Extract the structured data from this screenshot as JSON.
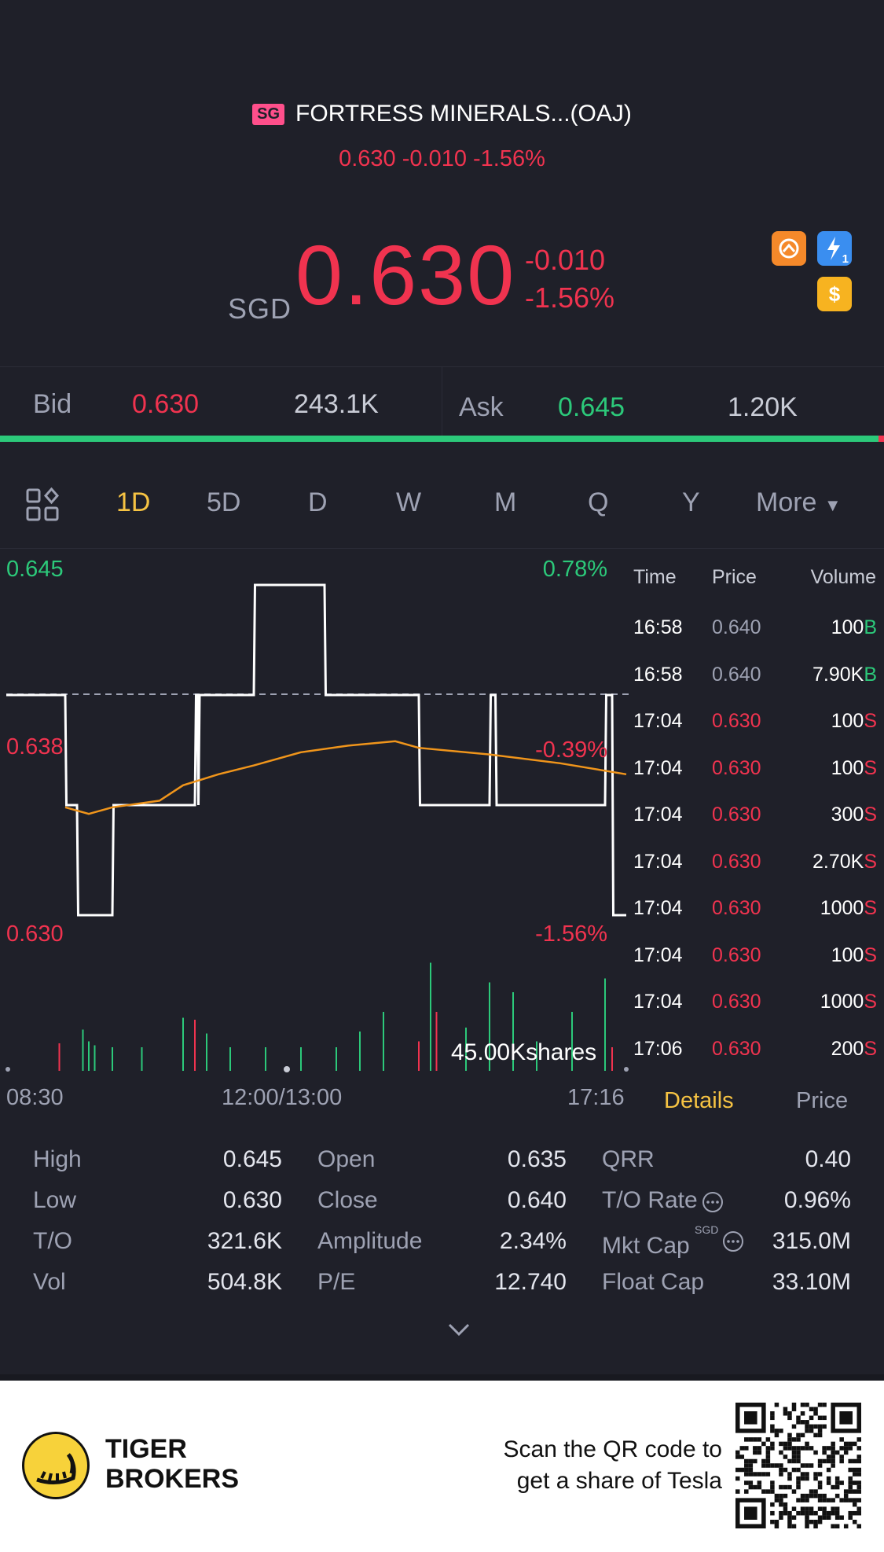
{
  "header": {
    "market_badge": "SG",
    "title": "FORTRESS MINERALS...(OAJ)",
    "subtitle": "0.630 -0.010 -1.56%"
  },
  "quote": {
    "currency": "SGD",
    "price": "0.630",
    "change": "-0.010",
    "change_pct": "-1.56%"
  },
  "icons": [
    "shared-icon",
    "lightning-icon",
    "dollar-icon"
  ],
  "icon_labels": {
    "lightning_sub": "1",
    "dollar": "$"
  },
  "bid_ask": {
    "bid_label": "Bid",
    "bid_price": "0.630",
    "bid_size": "243.1K",
    "ask_label": "Ask",
    "ask_price": "0.645",
    "ask_size": "1.20K"
  },
  "tabs": [
    "1D",
    "5D",
    "D",
    "W",
    "M",
    "Q",
    "Y",
    "More"
  ],
  "active_tab": "1D",
  "chart": {
    "y_top": "0.645",
    "y_mid": "0.638",
    "y_bot": "0.630",
    "pct_top": "0.78%",
    "pct_mid": "-0.39%",
    "pct_bot": "-1.56%",
    "volume_label": "45.00Kshares",
    "x_start": "08:30",
    "x_mid": "12:00/13:00",
    "x_end": "17:16"
  },
  "chart_data": {
    "type": "line",
    "xlabel": "",
    "ylabel": "",
    "ylim": [
      0.63,
      0.645
    ],
    "series": [
      {
        "x": [
          "08:30",
          "09:20",
          "09:21",
          "09:30",
          "09:31",
          "10:00",
          "10:01",
          "11:10",
          "11:11",
          "11:12",
          "11:13",
          "11:14",
          "12:00",
          "12:01",
          "13:00",
          "13:01",
          "14:20",
          "14:21",
          "15:20",
          "15:21",
          "15:25",
          "15:26",
          "16:58",
          "16:59",
          "17:04",
          "17:05",
          "17:16"
        ],
        "values": [
          0.64,
          0.64,
          0.635,
          0.635,
          0.63,
          0.63,
          0.635,
          0.635,
          0.64,
          0.64,
          0.635,
          0.64,
          0.64,
          0.645,
          0.645,
          0.64,
          0.64,
          0.635,
          0.635,
          0.64,
          0.64,
          0.635,
          0.635,
          0.64,
          0.64,
          0.63,
          0.63
        ]
      },
      {
        "x": [
          "09:20",
          "09:40",
          "10:00",
          "10:40",
          "11:00",
          "11:30",
          "12:00",
          "12:40",
          "13:20",
          "14:00",
          "14:20",
          "15:20",
          "16:20",
          "17:16"
        ],
        "values": [
          0.6349,
          0.6346,
          0.6349,
          0.6352,
          0.6359,
          0.6364,
          0.6368,
          0.6374,
          0.6377,
          0.6379,
          0.6376,
          0.6373,
          0.6369,
          0.6364
        ]
      }
    ],
    "volume_bars": [
      {
        "x": "09:15",
        "v": 14,
        "c": "#f0334f"
      },
      {
        "x": "09:35",
        "v": 21,
        "c": "#2cc97a"
      },
      {
        "x": "09:40",
        "v": 15,
        "c": "#2cc97a"
      },
      {
        "x": "09:45",
        "v": 13,
        "c": "#2cc97a"
      },
      {
        "x": "10:00",
        "v": 12,
        "c": "#2cc97a"
      },
      {
        "x": "10:25",
        "v": 12,
        "c": "#2cc97a"
      },
      {
        "x": "11:00",
        "v": 27,
        "c": "#2cc97a"
      },
      {
        "x": "11:10",
        "v": 26,
        "c": "#f0334f"
      },
      {
        "x": "11:20",
        "v": 19,
        "c": "#2cc97a"
      },
      {
        "x": "11:40",
        "v": 12,
        "c": "#2cc97a"
      },
      {
        "x": "12:10",
        "v": 12,
        "c": "#2cc97a"
      },
      {
        "x": "12:40",
        "v": 12,
        "c": "#2cc97a"
      },
      {
        "x": "13:10",
        "v": 12,
        "c": "#2cc97a"
      },
      {
        "x": "13:30",
        "v": 20,
        "c": "#2cc97a"
      },
      {
        "x": "13:50",
        "v": 30,
        "c": "#2cc97a"
      },
      {
        "x": "14:20",
        "v": 15,
        "c": "#f0334f"
      },
      {
        "x": "14:30",
        "v": 55,
        "c": "#2cc97a"
      },
      {
        "x": "14:35",
        "v": 30,
        "c": "#f0334f"
      },
      {
        "x": "15:00",
        "v": 22,
        "c": "#2cc97a"
      },
      {
        "x": "15:20",
        "v": 45,
        "c": "#2cc97a"
      },
      {
        "x": "15:40",
        "v": 40,
        "c": "#2cc97a"
      },
      {
        "x": "16:00",
        "v": 15,
        "c": "#2cc97a"
      },
      {
        "x": "16:30",
        "v": 30,
        "c": "#2cc97a"
      },
      {
        "x": "16:58",
        "v": 47,
        "c": "#2cc97a"
      },
      {
        "x": "17:04",
        "v": 12,
        "c": "#f0334f"
      }
    ]
  },
  "trades": {
    "headers": [
      "Time",
      "Price",
      "Volume"
    ],
    "rows": [
      {
        "time": "16:58",
        "price": "0.640",
        "vol": "100",
        "side": "B"
      },
      {
        "time": "16:58",
        "price": "0.640",
        "vol": "7.90K",
        "side": "B"
      },
      {
        "time": "17:04",
        "price": "0.630",
        "vol": "100",
        "side": "S"
      },
      {
        "time": "17:04",
        "price": "0.630",
        "vol": "100",
        "side": "S"
      },
      {
        "time": "17:04",
        "price": "0.630",
        "vol": "300",
        "side": "S"
      },
      {
        "time": "17:04",
        "price": "0.630",
        "vol": "2.70K",
        "side": "S"
      },
      {
        "time": "17:04",
        "price": "0.630",
        "vol": "1000",
        "side": "S"
      },
      {
        "time": "17:04",
        "price": "0.630",
        "vol": "100",
        "side": "S"
      },
      {
        "time": "17:04",
        "price": "0.630",
        "vol": "1000",
        "side": "S"
      },
      {
        "time": "17:06",
        "price": "0.630",
        "vol": "200",
        "side": "S"
      }
    ],
    "tab_details": "Details",
    "tab_price": "Price"
  },
  "stats": {
    "col1": [
      [
        "High",
        "0.645"
      ],
      [
        "Low",
        "0.630"
      ],
      [
        "T/O",
        "321.6K"
      ],
      [
        "Vol",
        "504.8K"
      ]
    ],
    "col2": [
      [
        "Open",
        "0.635"
      ],
      [
        "Close",
        "0.640"
      ],
      [
        "Amplitude",
        "2.34%"
      ],
      [
        "P/E",
        "12.740"
      ]
    ],
    "col3": [
      [
        "QRR",
        "0.40"
      ],
      [
        "T/O Rate",
        "0.96%"
      ],
      [
        "Mkt Cap",
        "315.0M"
      ],
      [
        "Float Cap",
        "33.10M"
      ]
    ],
    "mkt_cap_sup": "SGD"
  },
  "footer": {
    "brand_line1": "TIGER",
    "brand_line2": "BROKERS",
    "scan_line1": "Scan the QR code to",
    "scan_line2": "get a share of Tesla"
  },
  "colors": {
    "background": "#1f2029",
    "down": "#f0334f",
    "up": "#2cc97a",
    "accent": "#f6c343",
    "avg_line": "#f0951b"
  }
}
